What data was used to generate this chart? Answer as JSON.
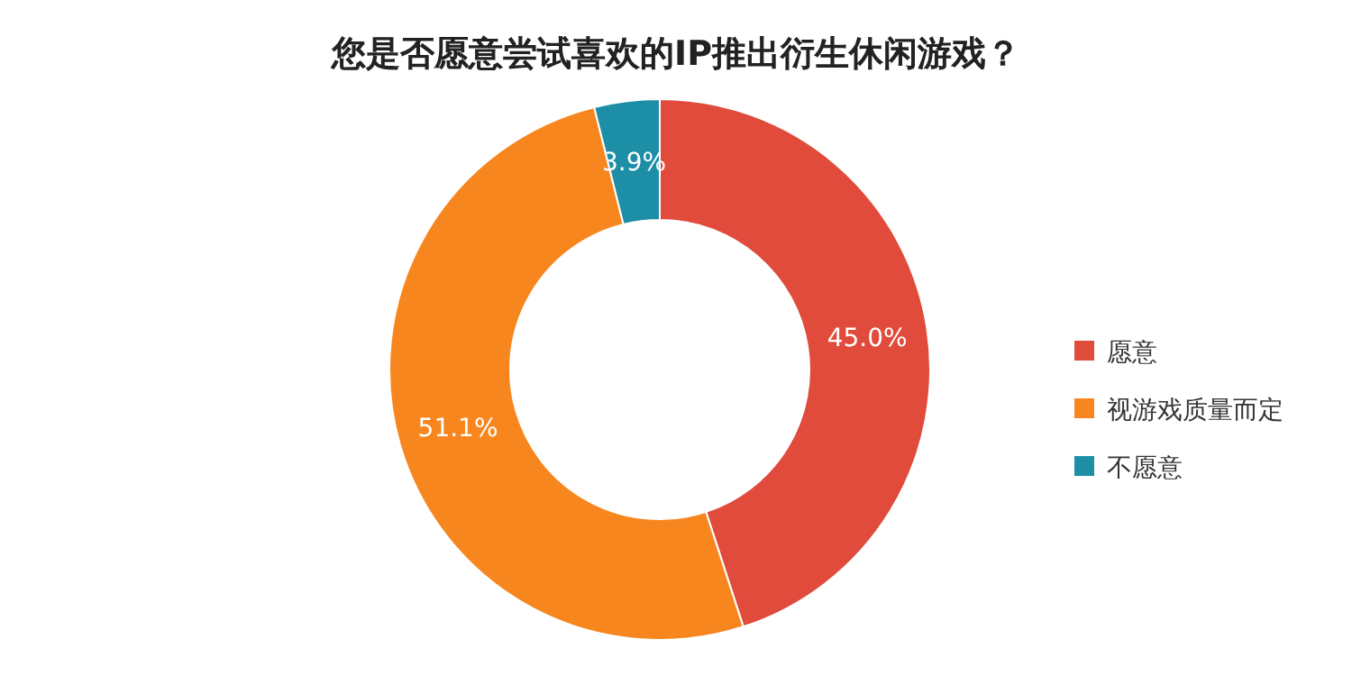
{
  "chart_data": {
    "type": "donut",
    "title": "您是否愿意尝试喜欢的IP推出衍生休闲游戏？",
    "categories": [
      "愿意",
      "视游戏质量而定",
      "不愿意"
    ],
    "values": [
      45.0,
      51.1,
      3.9
    ],
    "value_labels": [
      "45.0%",
      "51.1%",
      "3.9%"
    ],
    "colors": [
      "#e04b3b",
      "#f7861f",
      "#1c8ea6"
    ],
    "legend": "right"
  }
}
